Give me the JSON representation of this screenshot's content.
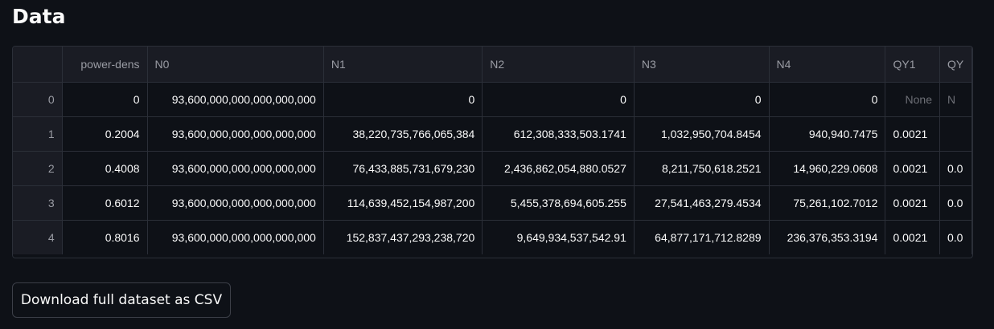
{
  "title": "Data",
  "table": {
    "columns": [
      "",
      "power-dens",
      "N0",
      "N1",
      "N2",
      "N3",
      "N4",
      "QY1",
      "QY"
    ],
    "rows": [
      [
        "0",
        "0",
        "93,600,000,000,000,000,000",
        "0",
        "0",
        "0",
        "0",
        "None",
        "N"
      ],
      [
        "1",
        "0.2004",
        "93,600,000,000,000,000,000",
        "38,220,735,766,065,384",
        "612,308,333,503.1741",
        "1,032,950,704.8454",
        "940,940.7475",
        "0.0021",
        ""
      ],
      [
        "2",
        "0.4008",
        "93,600,000,000,000,000,000",
        "76,433,885,731,679,230",
        "2,436,862,054,880.0527",
        "8,211,750,618.2521",
        "14,960,229.0608",
        "0.0021",
        "0.0"
      ],
      [
        "3",
        "0.6012",
        "93,600,000,000,000,000,000",
        "114,639,452,154,987,200",
        "5,455,378,694,605.255",
        "27,541,463,279.4534",
        "75,261,102.7012",
        "0.0021",
        "0.0"
      ],
      [
        "4",
        "0.8016",
        "93,600,000,000,000,000,000",
        "152,837,437,293,238,720",
        "9,649,934,537,542.91",
        "64,877,171,712.8289",
        "236,376,353.3194",
        "0.0021",
        "0.0"
      ]
    ]
  },
  "download_label": "Download full dataset as CSV"
}
